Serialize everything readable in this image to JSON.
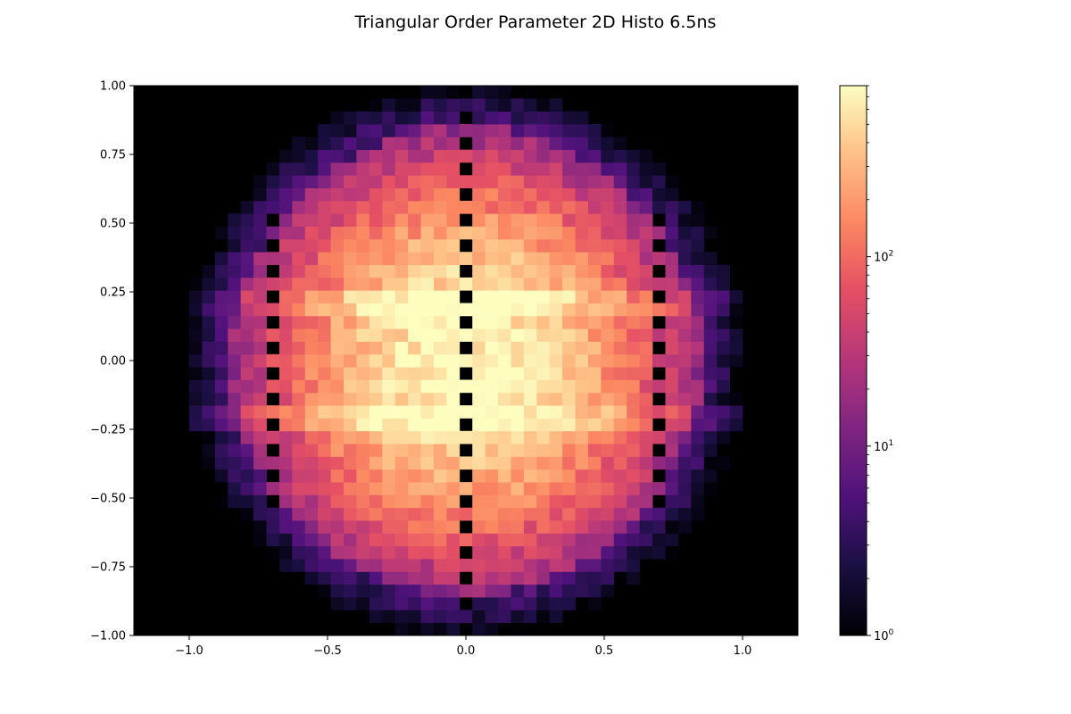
{
  "chart_data": {
    "type": "heatmap",
    "title": "Triangular Order Parameter 2D Histo 6.5ns",
    "xlabel": "",
    "ylabel": "",
    "xlim": [
      -1.2,
      1.2
    ],
    "ylim": [
      -1.0,
      1.0
    ],
    "x_ticks": [
      {
        "value": -1.0,
        "label": "−1.0"
      },
      {
        "value": -0.5,
        "label": "−0.5"
      },
      {
        "value": 0.0,
        "label": "0.0"
      },
      {
        "value": 0.5,
        "label": "0.5"
      },
      {
        "value": 1.0,
        "label": "1.0"
      }
    ],
    "y_ticks": [
      {
        "value": 1.0,
        "label": "1.00"
      },
      {
        "value": 0.75,
        "label": "0.75"
      },
      {
        "value": 0.5,
        "label": "0.50"
      },
      {
        "value": 0.25,
        "label": "0.25"
      },
      {
        "value": 0.0,
        "label": "0.00"
      },
      {
        "value": -0.25,
        "label": "−0.25"
      },
      {
        "value": -0.5,
        "label": "−0.50"
      },
      {
        "value": -0.75,
        "label": "−0.75"
      },
      {
        "value": -1.0,
        "label": "−1.00"
      }
    ],
    "colorbar": {
      "scale": "log",
      "colormap": "magma",
      "range": [
        1,
        800
      ],
      "ticks": [
        {
          "value": 1,
          "base": "10",
          "exp": "0"
        },
        {
          "value": 10,
          "base": "10",
          "exp": "1"
        },
        {
          "value": 100,
          "base": "10",
          "exp": "2"
        }
      ]
    },
    "bins": {
      "x_range": [
        -1.0,
        1.0
      ],
      "y_range": [
        -1.0,
        1.0
      ],
      "nx": 43,
      "ny": 43,
      "empty_column_x": 0.0,
      "empty_columns_x": [
        -0.7,
        0.7
      ],
      "ridge_rows_y": [
        0.19,
        -0.19
      ],
      "support_radius": 1.05,
      "max_count": 800
    },
    "grid": false,
    "background": "#000000"
  }
}
